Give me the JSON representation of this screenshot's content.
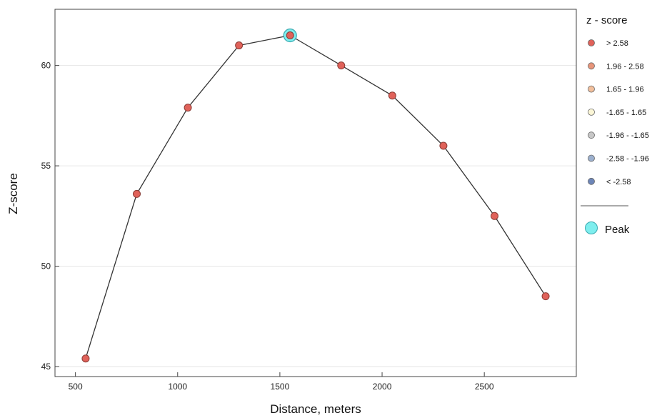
{
  "chart_data": {
    "type": "line",
    "xlabel": "Distance, meters",
    "ylabel": "Z-score",
    "xlim": [
      400,
      2950
    ],
    "ylim": [
      44.5,
      62.8
    ],
    "xticks": [
      500,
      1000,
      1500,
      2000,
      2500
    ],
    "yticks": [
      45,
      50,
      55,
      60
    ],
    "grid": "horizontal",
    "series": [
      {
        "x": [
          550,
          800,
          1050,
          1300,
          1550,
          1800,
          2050,
          2300,
          2550,
          2800
        ],
        "y": [
          45.4,
          53.6,
          57.9,
          61.0,
          61.5,
          60.0,
          58.5,
          56.0,
          52.5,
          48.5
        ]
      }
    ],
    "peak": {
      "x": 1550,
      "y": 61.5
    },
    "legend": {
      "title": "z - score",
      "position": "right",
      "items": [
        {
          "label": "> 2.58",
          "color": "#e0625a"
        },
        {
          "label": "1.96 - 2.58",
          "color": "#e8957a"
        },
        {
          "label": "1.65 - 1.96",
          "color": "#f2bf9c"
        },
        {
          "label": "-1.65 - 1.65",
          "color": "#fbf6d6"
        },
        {
          "label": "-1.96 - -1.65",
          "color": "#c7c7c7"
        },
        {
          "label": "-2.58 - -1.96",
          "color": "#9cb0ce"
        },
        {
          "label": "< -2.58",
          "color": "#6d86b8"
        }
      ],
      "peak_label": "Peak",
      "peak_color": "#7eeeee"
    },
    "colors": {
      "line": "#333333",
      "point": "#e0625a",
      "point_stroke": "#8a3a34",
      "grid": "#e6e6e6",
      "frame": "#444444"
    }
  }
}
